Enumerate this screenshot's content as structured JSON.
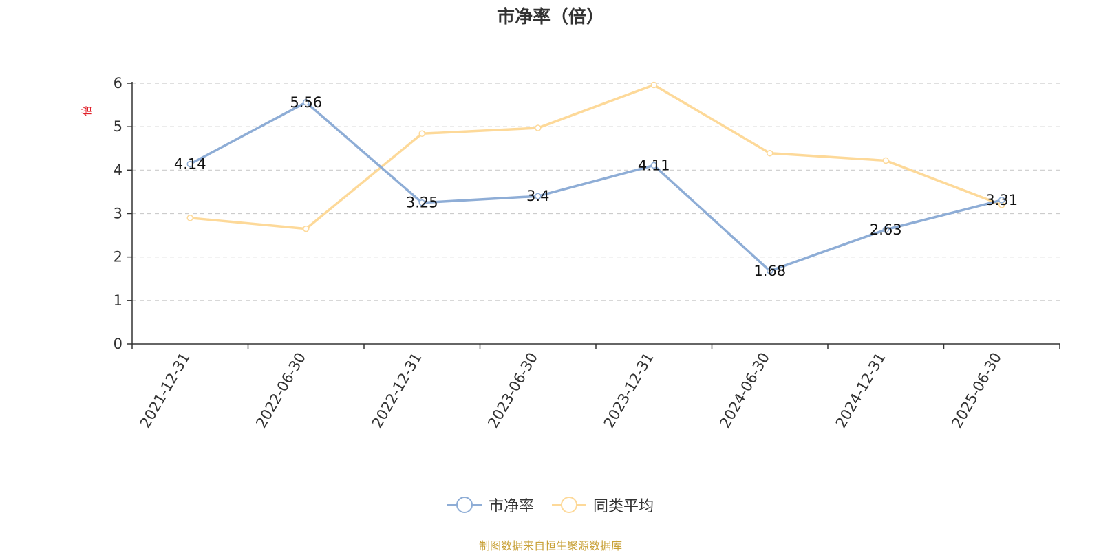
{
  "colors": {
    "series_pb": "#8eadd6",
    "series_avg": "#fdd999",
    "unit_label": "#e0202a",
    "source": "#c9a23a"
  },
  "chart_data": {
    "type": "line",
    "title": "市净率（倍）",
    "ylabel": "倍",
    "xlabel": "",
    "ylim": [
      0,
      6
    ],
    "yticks": [
      0,
      1,
      2,
      3,
      4,
      5,
      6
    ],
    "grid": true,
    "legend_position": "bottom-center",
    "x": [
      "2021-12-31",
      "2022-06-30",
      "2022-12-31",
      "2023-06-30",
      "2023-12-31",
      "2024-06-30",
      "2024-12-31",
      "2025-06-30"
    ],
    "series": [
      {
        "name": "市净率",
        "values": [
          4.14,
          5.56,
          3.25,
          3.4,
          4.11,
          1.68,
          2.63,
          3.31
        ],
        "labels": [
          "4.14",
          "5.56",
          "3.25",
          "3.4",
          "4.11",
          "1.68",
          "2.63",
          "3.31"
        ]
      },
      {
        "name": "同类平均",
        "values": [
          2.9,
          2.65,
          4.84,
          4.97,
          5.96,
          4.39,
          4.22,
          3.2
        ]
      }
    ]
  },
  "source_note": "制图数据来自恒生聚源数据库"
}
